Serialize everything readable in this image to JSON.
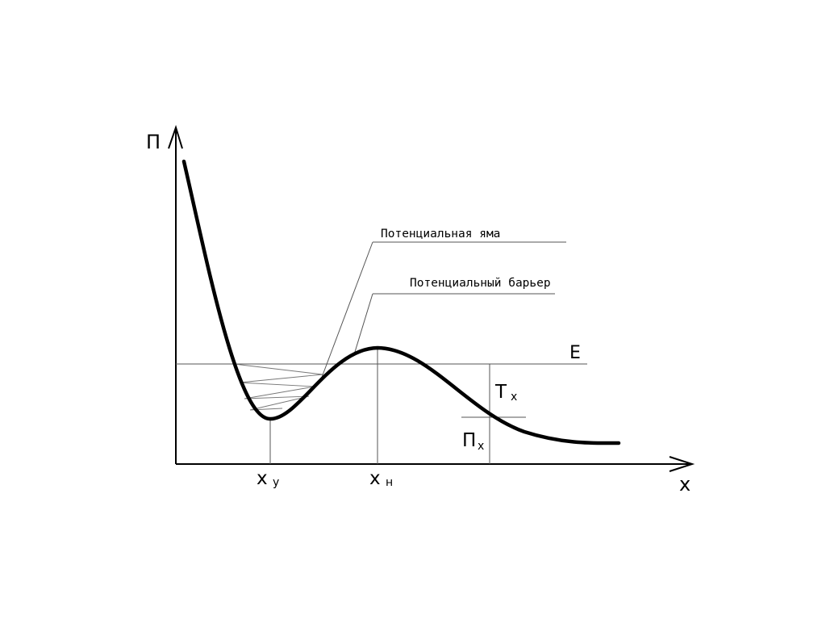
{
  "axes": {
    "y_label": "П",
    "x_label": "x"
  },
  "energy_label": "E",
  "annotations": {
    "well": "Потенциальная яма",
    "barrier": "Потенциальный барьер"
  },
  "points": {
    "x_min": {
      "main": "x",
      "sub": "у"
    },
    "x_max": {
      "main": "x",
      "sub": "н"
    }
  },
  "kinetic": {
    "main": "Т",
    "sub": "x"
  },
  "potential": {
    "main": "П",
    "sub": "x"
  }
}
